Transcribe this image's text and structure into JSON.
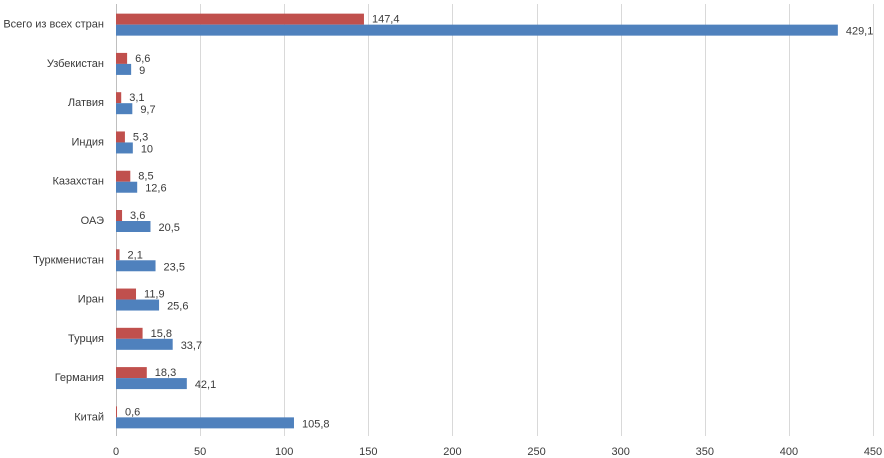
{
  "chart_data": {
    "type": "bar",
    "orientation": "horizontal",
    "title": "",
    "xlabel": "",
    "ylabel": "",
    "categories": [
      "Всего из всех стран",
      "Узбекистан",
      "Латвия",
      "Индия",
      "Казахстан",
      "ОАЭ",
      "Туркменистан",
      "Иран",
      "Турция",
      "Германия",
      "Китай"
    ],
    "series": [
      {
        "color": "#c0504d",
        "values": [
          147.4,
          6.6,
          3.1,
          5.3,
          8.5,
          3.6,
          2.1,
          11.9,
          15.8,
          18.3,
          0.6
        ],
        "labels": [
          "147,4",
          "6,6",
          "3,1",
          "5,3",
          "8,5",
          "3,6",
          "2,1",
          "11,9",
          "15,8",
          "18,3",
          "0,6"
        ]
      },
      {
        "color": "#4f81bd",
        "values": [
          429.1,
          9,
          9.7,
          10,
          12.6,
          20.5,
          23.5,
          25.6,
          33.7,
          42.1,
          105.8
        ],
        "labels": [
          "429,1",
          "9",
          "9,7",
          "10",
          "12,6",
          "20,5",
          "23,5",
          "25,6",
          "33,7",
          "42,1",
          "105,8"
        ]
      }
    ],
    "xlim": [
      0,
      450
    ],
    "x_ticks": [
      0,
      50,
      100,
      150,
      200,
      250,
      300,
      350,
      400,
      450
    ],
    "x_tick_labels": [
      "0",
      "50",
      "100",
      "150",
      "200",
      "250",
      "300",
      "350",
      "400",
      "450"
    ],
    "grid": "vertical",
    "legend": "none"
  }
}
